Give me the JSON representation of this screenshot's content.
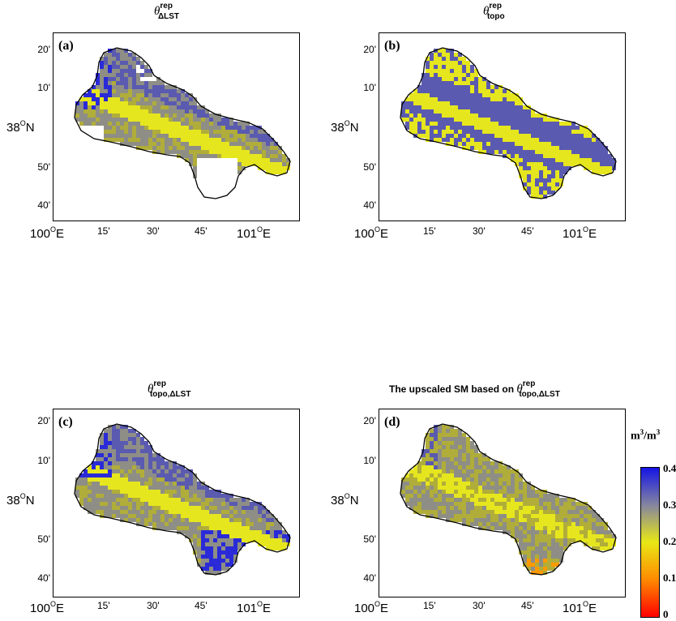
{
  "colorbar": {
    "unit_base": "m",
    "unit_exp": "3",
    "unit_sep": "/m",
    "unit_exp2": "3",
    "ticks": [
      "0.4",
      "0.3",
      "0.2",
      "0.1",
      "0"
    ],
    "colors": [
      "#1515e6",
      "#8585a0",
      "#e8e815",
      "#ff8a00",
      "#ff0000"
    ]
  },
  "axes": {
    "y_ticks": [
      "20'",
      "10'",
      "",
      "50'",
      "40'"
    ],
    "y_center": {
      "value": "38",
      "deg": "O",
      "hemi": "N"
    },
    "x_left": {
      "value": "100",
      "deg": "O",
      "hemi": "E"
    },
    "x_ticks": [
      "15'",
      "30'",
      "45'"
    ],
    "x_right": {
      "value": "101",
      "deg": "O",
      "hemi": "E"
    }
  },
  "panels": [
    {
      "label": "(a)",
      "title_pre": "",
      "theta": "θ",
      "sup": "rep",
      "sub": "ΔLST",
      "mode": "lst"
    },
    {
      "label": "(b)",
      "title_pre": "",
      "theta": "θ",
      "sup": "rep",
      "sub": "topo",
      "mode": "topo"
    },
    {
      "label": "(c)",
      "title_pre": "",
      "theta": "θ",
      "sup": "rep",
      "sub": "topo,ΔLST",
      "mode": "combo"
    },
    {
      "label": "(d)",
      "title_pre": "The upscaled SM based on ",
      "theta": "θ",
      "sup": "rep",
      "sub": "topo,ΔLST",
      "mode": "upscaled"
    }
  ]
}
